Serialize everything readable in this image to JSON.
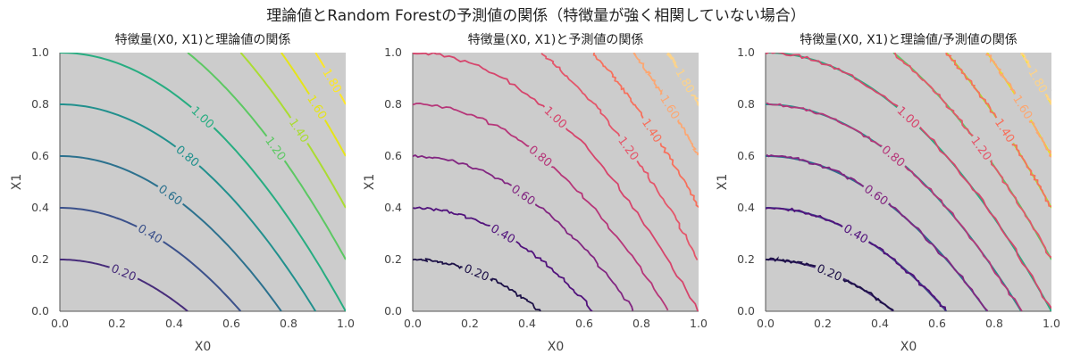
{
  "figure_title": "理論値とRandom Forestの予測値の関係（特徴量が強く相関していない場合）",
  "colors": {
    "plot_background": "#cccccc"
  },
  "chart_data": [
    {
      "type": "contour",
      "title": "特徴量(X0, X1)と理論値の関係",
      "xlabel": "X0",
      "ylabel": "X1",
      "xlim": [
        0.0,
        1.0
      ],
      "ylim": [
        0.0,
        1.0
      ],
      "xticks": [
        "0.0",
        "0.2",
        "0.4",
        "0.6",
        "0.8",
        "1.0"
      ],
      "yticks": [
        "0.0",
        "0.2",
        "0.4",
        "0.6",
        "0.8",
        "1.0"
      ],
      "colormap": "viridis",
      "levels": [
        0.2,
        0.4,
        0.6,
        0.8,
        1.0,
        1.2,
        1.4,
        1.6,
        1.8
      ],
      "level_labels": [
        "0.20",
        "0.40",
        "0.60",
        "0.80",
        "1.00",
        "1.20",
        "1.40",
        "1.60",
        "1.80"
      ],
      "level_colors": [
        "#472c7a",
        "#3b518b",
        "#2c718e",
        "#21908d",
        "#27ad81",
        "#5cc863",
        "#aadc32",
        "#e5e419",
        "#fde725"
      ],
      "grid": false
    },
    {
      "type": "contour",
      "title": "特徴量(X0, X1)と予測値の関係",
      "xlabel": "X0",
      "ylabel": "X1",
      "xlim": [
        0.0,
        1.0
      ],
      "ylim": [
        0.0,
        1.0
      ],
      "xticks": [
        "0.0",
        "0.2",
        "0.4",
        "0.6",
        "0.8",
        "1.0"
      ],
      "yticks": [
        "0.0",
        "0.2",
        "0.4",
        "0.6",
        "0.8",
        "1.0"
      ],
      "colormap": "magma",
      "levels": [
        0.2,
        0.4,
        0.6,
        0.8,
        1.0,
        1.2,
        1.4,
        1.6,
        1.8
      ],
      "level_labels": [
        "0.20",
        "0.40",
        "0.60",
        "0.80",
        "1.00",
        "1.20",
        "1.40",
        "1.60",
        "1.80"
      ],
      "level_colors": [
        "#1d1147",
        "#51127c",
        "#822681",
        "#b63679",
        "#d6456c",
        "#e4566a",
        "#f7705c",
        "#fca772",
        "#fcd38a"
      ],
      "grid": false
    },
    {
      "type": "contour",
      "title": "特徴量(X0, X1)と理論値/予測値の関係",
      "xlabel": "X0",
      "ylabel": "X1",
      "xlim": [
        0.0,
        1.0
      ],
      "ylim": [
        0.0,
        1.0
      ],
      "xticks": [
        "0.0",
        "0.2",
        "0.4",
        "0.6",
        "0.8",
        "1.0"
      ],
      "yticks": [
        "0.0",
        "0.2",
        "0.4",
        "0.6",
        "0.8",
        "1.0"
      ],
      "colormap": "viridis + magma overlay",
      "levels": [
        0.2,
        0.4,
        0.6,
        0.8,
        1.0,
        1.2,
        1.4,
        1.6,
        1.8
      ],
      "level_labels": [
        "0.20",
        "0.40",
        "0.60",
        "0.80",
        "1.00",
        "1.20",
        "1.40",
        "1.60",
        "1.80"
      ],
      "level_colors": [
        "#1d1147",
        "#51127c",
        "#822681",
        "#b63679",
        "#d6456c",
        "#e4566a",
        "#f7705c",
        "#fca772",
        "#fcd38a"
      ],
      "grid": false
    }
  ]
}
